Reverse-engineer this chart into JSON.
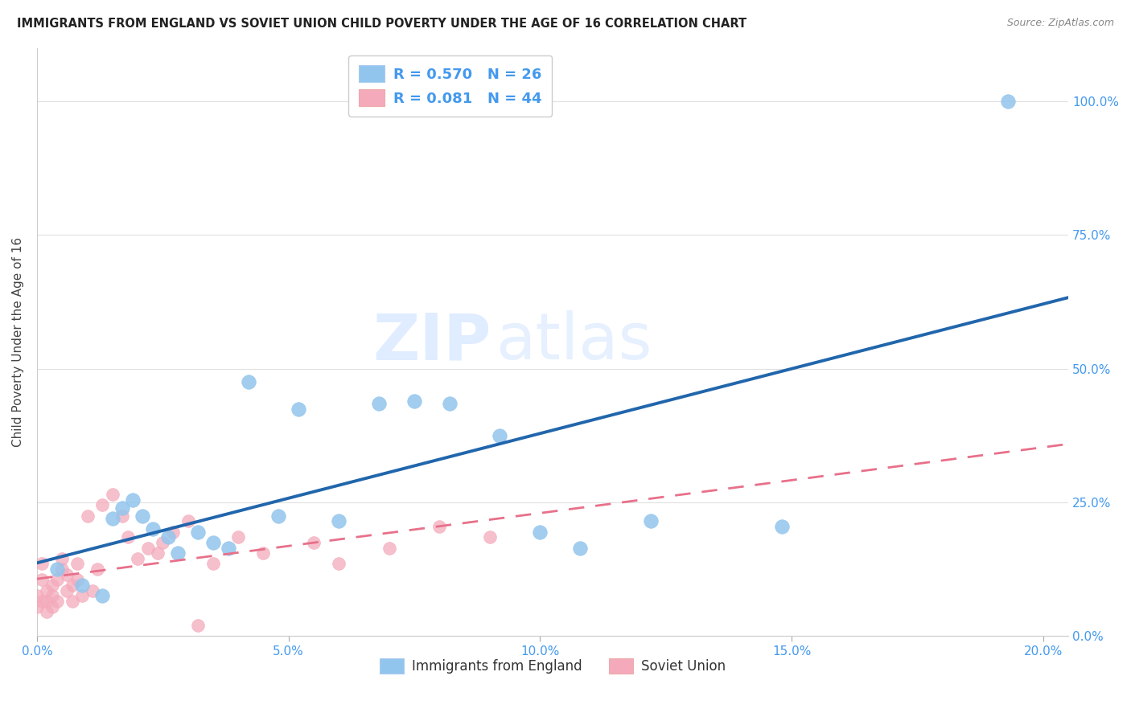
{
  "title": "IMMIGRANTS FROM ENGLAND VS SOVIET UNION CHILD POVERTY UNDER THE AGE OF 16 CORRELATION CHART",
  "source": "Source: ZipAtlas.com",
  "xlabel_ticks": [
    "0.0%",
    "5.0%",
    "10.0%",
    "15.0%",
    "20.0%"
  ],
  "xlabel_vals": [
    0.0,
    0.05,
    0.1,
    0.15,
    0.2
  ],
  "ylabel_ticks": [
    "0.0%",
    "25.0%",
    "50.0%",
    "75.0%",
    "100.0%"
  ],
  "ylabel_vals": [
    0.0,
    0.25,
    0.5,
    0.75,
    1.0
  ],
  "ylabel_label": "Child Poverty Under the Age of 16",
  "legend_england": "Immigrants from England",
  "legend_soviet": "Soviet Union",
  "R_england": 0.57,
  "N_england": 26,
  "R_soviet": 0.081,
  "N_soviet": 44,
  "england_color": "#92C5ED",
  "soviet_color": "#F4AABB",
  "england_line_color": "#2166AC",
  "soviet_line_color": "#E8708A",
  "watermark_zip": "ZIP",
  "watermark_atlas": "atlas",
  "england_x": [
    0.004,
    0.009,
    0.013,
    0.015,
    0.017,
    0.019,
    0.021,
    0.023,
    0.026,
    0.028,
    0.032,
    0.035,
    0.038,
    0.042,
    0.048,
    0.052,
    0.06,
    0.068,
    0.075,
    0.082,
    0.092,
    0.1,
    0.108,
    0.122,
    0.148,
    0.193
  ],
  "england_y": [
    0.125,
    0.095,
    0.075,
    0.22,
    0.24,
    0.255,
    0.225,
    0.2,
    0.185,
    0.155,
    0.195,
    0.175,
    0.165,
    0.475,
    0.225,
    0.425,
    0.215,
    0.435,
    0.44,
    0.435,
    0.375,
    0.195,
    0.165,
    0.215,
    0.205,
    1.0
  ],
  "soviet_x": [
    0.0,
    0.0,
    0.001,
    0.001,
    0.001,
    0.002,
    0.002,
    0.002,
    0.003,
    0.003,
    0.003,
    0.004,
    0.004,
    0.005,
    0.005,
    0.006,
    0.006,
    0.007,
    0.007,
    0.008,
    0.008,
    0.009,
    0.01,
    0.011,
    0.012,
    0.013,
    0.015,
    0.017,
    0.018,
    0.02,
    0.022,
    0.024,
    0.025,
    0.027,
    0.03,
    0.032,
    0.035,
    0.04,
    0.045,
    0.055,
    0.06,
    0.07,
    0.08,
    0.09
  ],
  "soviet_y": [
    0.055,
    0.075,
    0.105,
    0.065,
    0.135,
    0.045,
    0.065,
    0.085,
    0.055,
    0.075,
    0.095,
    0.065,
    0.105,
    0.125,
    0.145,
    0.085,
    0.115,
    0.065,
    0.095,
    0.105,
    0.135,
    0.075,
    0.225,
    0.085,
    0.125,
    0.245,
    0.265,
    0.225,
    0.185,
    0.145,
    0.165,
    0.155,
    0.175,
    0.195,
    0.215,
    0.02,
    0.135,
    0.185,
    0.155,
    0.175,
    0.135,
    0.165,
    0.205,
    0.185
  ],
  "xlim": [
    0.0,
    0.205
  ],
  "ylim_min": 0.0,
  "ylim_max": 1.1
}
